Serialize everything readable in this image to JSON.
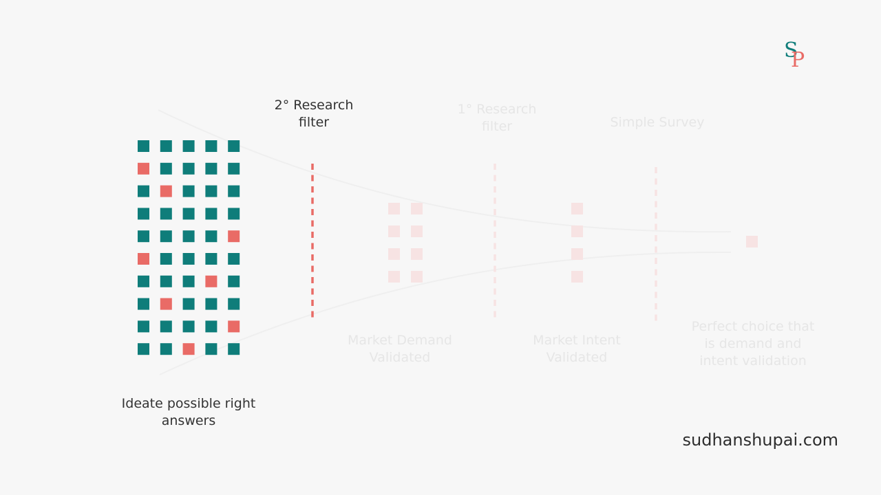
{
  "labels": {
    "ideate": "Ideate possible right\nanswers",
    "secondary_filter": "2° Research\nfilter",
    "primary_filter": "1° Research\nfilter",
    "simple_survey": "Simple Survey",
    "demand_validated": "Market Demand\nValidated",
    "intent_validated": "Market Intent\nValidated",
    "perfect_choice": "Perfect choice that\nis demand and\nintent validation"
  },
  "logo": {
    "letter_s": "S",
    "letter_p": "P"
  },
  "footer": {
    "website": "sudhanshupai.com"
  },
  "idea_grid": {
    "rows": 10,
    "cols": 5,
    "highlighted_cells": [
      [
        1,
        0
      ],
      [
        2,
        1
      ],
      [
        4,
        4
      ],
      [
        5,
        0
      ],
      [
        6,
        3
      ],
      [
        7,
        1
      ],
      [
        8,
        4
      ],
      [
        9,
        2
      ]
    ]
  },
  "stage_counts": {
    "ideas": 50,
    "after_secondary_filter": 8,
    "after_primary_filter": 4,
    "after_survey": 1
  },
  "colors": {
    "idea": "#0f7d7a",
    "highlight": "#e96b66",
    "filtered_faded": "#f7e3e3",
    "background": "#f7f7f7",
    "funnel_line": "#efefef"
  }
}
